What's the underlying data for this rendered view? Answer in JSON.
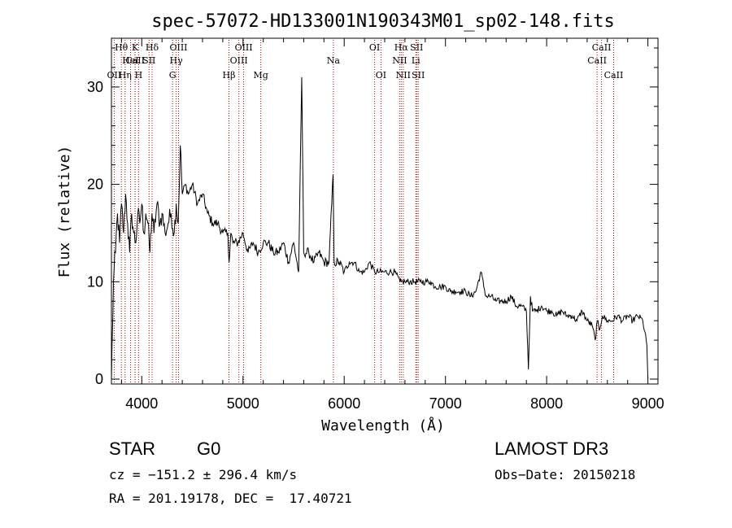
{
  "chart_data": {
    "type": "line",
    "title": "spec-57072-HD133001N190343M01_sp02-148.fits",
    "xlabel": "Wavelength (Å)",
    "ylabel": "Flux (relative)",
    "xlim": [
      3700,
      9100
    ],
    "ylim": [
      -0.5,
      35
    ],
    "xticks": [
      4000,
      5000,
      6000,
      7000,
      8000,
      9000
    ],
    "yticks": [
      0,
      10,
      20,
      30
    ],
    "series": [
      {
        "name": "flux",
        "x": [
          3700,
          3720,
          3740,
          3760,
          3780,
          3800,
          3820,
          3840,
          3860,
          3880,
          3900,
          3920,
          3940,
          3960,
          3980,
          4000,
          4020,
          4040,
          4060,
          4080,
          4100,
          4120,
          4150,
          4180,
          4200,
          4230,
          4260,
          4290,
          4320,
          4340,
          4360,
          4380,
          4400,
          4430,
          4460,
          4500,
          4550,
          4600,
          4650,
          4700,
          4750,
          4800,
          4850,
          4862,
          4880,
          4900,
          4950,
          5000,
          5050,
          5100,
          5150,
          5200,
          5250,
          5300,
          5350,
          5400,
          5450,
          5500,
          5550,
          5580,
          5600,
          5650,
          5700,
          5750,
          5800,
          5850,
          5890,
          5900,
          5950,
          6000,
          6050,
          6100,
          6150,
          6200,
          6250,
          6300,
          6350,
          6400,
          6450,
          6500,
          6550,
          6563,
          6600,
          6650,
          6700,
          6750,
          6800,
          6850,
          6900,
          6950,
          7000,
          7050,
          7100,
          7150,
          7200,
          7250,
          7300,
          7350,
          7400,
          7450,
          7500,
          7550,
          7600,
          7650,
          7700,
          7750,
          7800,
          7820,
          7840,
          7860,
          7900,
          7950,
          8000,
          8050,
          8100,
          8150,
          8200,
          8250,
          8300,
          8350,
          8400,
          8450,
          8480,
          8500,
          8520,
          8550,
          8600,
          8650,
          8700,
          8750,
          8800,
          8850,
          8900,
          8950,
          8990,
          9000
        ],
        "values": [
          0,
          10,
          13,
          17,
          14,
          18,
          15,
          19,
          16,
          13,
          17,
          15,
          14,
          17,
          16,
          18,
          15,
          17,
          16,
          13,
          17,
          15,
          18,
          16,
          17,
          15,
          16,
          17,
          15,
          18,
          16,
          24,
          19,
          20,
          19,
          20,
          18,
          19,
          17,
          16,
          16,
          15,
          15,
          12,
          15,
          14,
          14,
          15,
          13,
          14,
          13,
          14,
          14,
          13,
          13,
          14,
          12,
          14,
          11,
          31,
          13,
          13,
          12,
          13,
          12,
          12,
          21,
          12,
          12,
          11,
          12,
          12,
          11,
          11,
          12,
          11,
          11,
          11,
          11,
          11,
          10,
          10,
          10,
          10,
          10,
          10,
          10,
          10,
          9.5,
          9.5,
          9.5,
          9,
          9,
          9,
          9,
          8.5,
          9,
          11,
          8.5,
          8.5,
          8,
          8,
          8,
          8.5,
          7.5,
          7.5,
          7,
          1,
          8.5,
          7,
          7,
          7.5,
          7,
          7,
          6.5,
          7,
          6.5,
          6.5,
          6,
          7,
          6,
          5.5,
          4,
          6,
          5,
          6.5,
          6,
          6,
          6.5,
          6,
          6.5,
          6,
          6.5,
          6,
          3.5,
          0
        ]
      }
    ],
    "line_markers": [
      {
        "label": "Hθ",
        "x": 3798,
        "row": 1
      },
      {
        "label": "CaII",
        "x": 3934,
        "row": 2
      },
      {
        "label": "OII",
        "x": 3727,
        "row": 3
      },
      {
        "label": "K",
        "x": 3934,
        "row": 1
      },
      {
        "label": "HeI",
        "x": 3889,
        "row": 2
      },
      {
        "label": "Hη",
        "x": 3835,
        "row": 3
      },
      {
        "label": "Hδ",
        "x": 4102,
        "row": 1
      },
      {
        "label": "SII",
        "x": 4072,
        "row": 2
      },
      {
        "label": "H",
        "x": 3968,
        "row": 3
      },
      {
        "label": "OIII",
        "x": 4363,
        "row": 1
      },
      {
        "label": "Hγ",
        "x": 4340,
        "row": 2
      },
      {
        "label": "G",
        "x": 4304,
        "row": 3
      },
      {
        "label": "OIII",
        "x": 5007,
        "row": 1
      },
      {
        "label": "OIII",
        "x": 4959,
        "row": 2
      },
      {
        "label": "Hβ",
        "x": 4861,
        "row": 3
      },
      {
        "label": "Mg",
        "x": 5175,
        "row": 3
      },
      {
        "label": "Na",
        "x": 5893,
        "row": 2
      },
      {
        "label": "OI",
        "x": 6300,
        "row": 1
      },
      {
        "label": "OI",
        "x": 6363,
        "row": 3
      },
      {
        "label": "Hα",
        "x": 6563,
        "row": 1
      },
      {
        "label": "NII",
        "x": 6548,
        "row": 2
      },
      {
        "label": "NII",
        "x": 6583,
        "row": 3
      },
      {
        "label": "SII",
        "x": 6716,
        "row": 1
      },
      {
        "label": "Li",
        "x": 6708,
        "row": 2
      },
      {
        "label": "SII",
        "x": 6731,
        "row": 3
      },
      {
        "label": "CaII",
        "x": 8542,
        "row": 1
      },
      {
        "label": "CaII",
        "x": 8498,
        "row": 2
      },
      {
        "label": "CaII",
        "x": 8662,
        "row": 3
      }
    ],
    "marker_color": "#c00000"
  },
  "info": {
    "class": "STAR",
    "subclass": "G0",
    "survey": "LAMOST DR3",
    "cz": "cz = −151.2 ± 296.4 km/s",
    "obs_date": "Obs−Date: 20150218",
    "coords": "RA = 201.19178, DEC =  17.40721"
  }
}
